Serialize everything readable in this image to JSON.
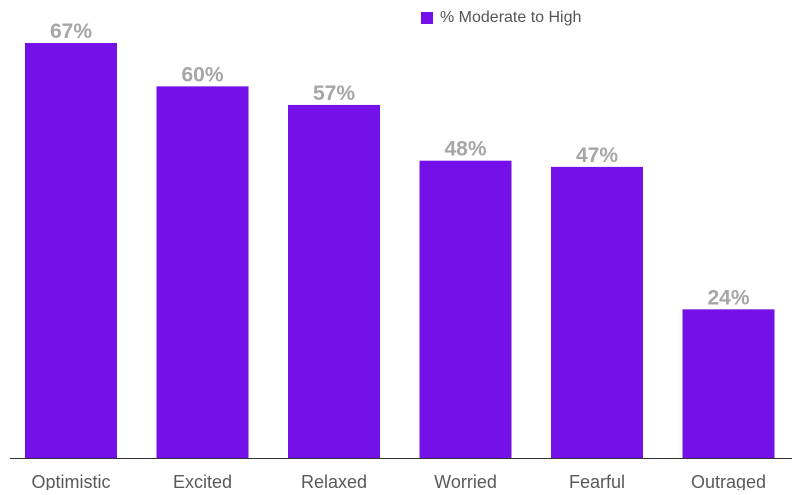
{
  "chart_data": {
    "type": "bar",
    "title": "",
    "xlabel": "",
    "ylabel": "",
    "categories": [
      "Optimistic",
      "Excited",
      "Relaxed",
      "Worried",
      "Fearful",
      "Outraged"
    ],
    "series": [
      {
        "name": "% Moderate to High",
        "values": [
          67,
          60,
          57,
          48,
          47,
          24
        ],
        "value_labels": [
          "67%",
          "60%",
          "57%",
          "48%",
          "47%",
          "24%"
        ]
      }
    ],
    "ylim": [
      0,
      67
    ],
    "grid": false,
    "legend_position": "top-right"
  },
  "colors": {
    "bar": "#7311e8",
    "value_label": "#a6a6a6",
    "category_label": "#595959",
    "baseline": "#333333"
  },
  "legend": {
    "label": "% Moderate to High"
  }
}
